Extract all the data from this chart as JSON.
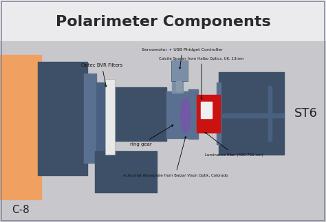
{
  "title": "Polarimeter Components",
  "title_fontsize": 16,
  "title_fontweight": "bold",
  "title_color": "#2a2a2a",
  "bg_top_color": "#ebebee",
  "bg_bottom_color": "#c8c8cc",
  "dark_blue": "#3d5068",
  "medium_blue": "#4a6080",
  "slate": "#5a7090",
  "light_slate": "#7a90a8",
  "orange": "#f0a060",
  "red": "#cc1111",
  "white_filter": "#e8e8e8",
  "purple": "#7755aa",
  "label_c8": "C-8",
  "label_st6": "ST6",
  "label_filters": "Optec BVR Filters",
  "label_servomotor": "Servomotor + USB Phidget Controller",
  "label_calcite": "Calcite Spacer from Halbo Optics, UK, 13mm",
  "label_ring_gear": "ring gear",
  "label_luminance": "Luminance filter (400-700 nm)",
  "label_achromat": "Achromat Waveplate from Balzar Vison Optik, Colorado"
}
